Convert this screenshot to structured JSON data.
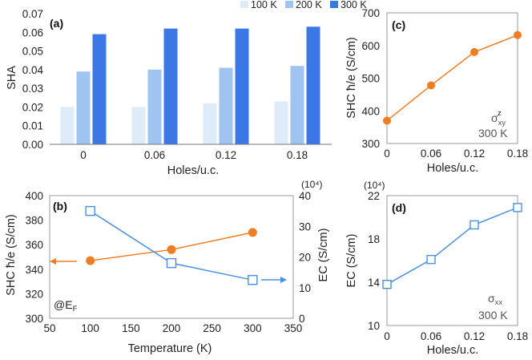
{
  "colors": {
    "k100": "#deebf9",
    "k200": "#9fc4f2",
    "k300": "#3b78e6",
    "orange": "#f07d22",
    "blue": "#4a90e0"
  },
  "chart_data": [
    {
      "panel": "a",
      "label": "(a)",
      "type": "bar",
      "categories": [
        "0",
        "0.06",
        "0.12",
        "0.18"
      ],
      "series": [
        {
          "name": "100 K",
          "values": [
            0.02,
            0.02,
            0.022,
            0.023
          ]
        },
        {
          "name": "200 K",
          "values": [
            0.039,
            0.04,
            0.041,
            0.042
          ]
        },
        {
          "name": "300 K",
          "values": [
            0.059,
            0.062,
            0.062,
            0.063
          ]
        }
      ],
      "xlabel": "Holes/u.c.",
      "ylabel": "SHA",
      "ylim": [
        0,
        0.07
      ],
      "yticks": [
        "0.00",
        "0.01",
        "0.02",
        "0.03",
        "0.04",
        "0.05",
        "0.06",
        "0.07"
      ],
      "legend": "top"
    },
    {
      "panel": "b",
      "label": "(b)",
      "type": "line",
      "x": [
        100,
        200,
        300
      ],
      "xlabel": "Temperature (K)",
      "xlim": [
        50,
        350
      ],
      "xticks": [
        "50",
        "100",
        "150",
        "200",
        "250",
        "300",
        "350"
      ],
      "ylabel": "SHC ħ/e (S/cm)",
      "ylim": [
        300,
        400
      ],
      "yticks": [
        "300",
        "320",
        "340",
        "360",
        "380",
        "400"
      ],
      "y2label": "EC (S/cm)",
      "y2lim": [
        0,
        40
      ],
      "y2unit": "(10⁴)",
      "y2ticks": [
        "0",
        "10",
        "20",
        "30",
        "40"
      ],
      "series": [
        {
          "name": "SHC",
          "axis": "left",
          "marker": "circle",
          "values": [
            347,
            356,
            370
          ]
        },
        {
          "name": "EC",
          "axis": "right",
          "marker": "square",
          "values": [
            35,
            18,
            12.5
          ]
        }
      ],
      "annotation_base": "@E",
      "annotation_sub": "F"
    },
    {
      "panel": "c",
      "label": "(c)",
      "type": "line",
      "x": [
        0,
        0.06,
        0.12,
        0.18
      ],
      "xticks": [
        "0",
        "0.06",
        "0.12",
        "0.18"
      ],
      "xlabel": "Holes/u.c.",
      "ylabel": "SHC ħ/e (S/cm)",
      "ylim": [
        300,
        700
      ],
      "yticks": [
        "300",
        "400",
        "500",
        "600",
        "700"
      ],
      "series": [
        {
          "name": "σxy z",
          "values": [
            370,
            478,
            580,
            632
          ]
        }
      ],
      "sigma": "σ",
      "sigma_sub": "xy",
      "sigma_sup": "z",
      "temp": "300 K"
    },
    {
      "panel": "d",
      "label": "(d)",
      "type": "line",
      "x": [
        0,
        0.06,
        0.12,
        0.18
      ],
      "xticks": [
        "0",
        "0.06",
        "0.12",
        "0.18"
      ],
      "xlabel": "Holes/u.c.",
      "ylabel": "EC (S/cm)",
      "y_unit": "(10⁴)",
      "ylim": [
        10,
        22
      ],
      "yticks": [
        "10",
        "14",
        "18",
        "22"
      ],
      "series": [
        {
          "name": "σxx",
          "values": [
            13.8,
            16.1,
            19.3,
            20.9
          ]
        }
      ],
      "sigma": "σ",
      "sigma_sub": "xx",
      "temp": "300 K"
    }
  ]
}
